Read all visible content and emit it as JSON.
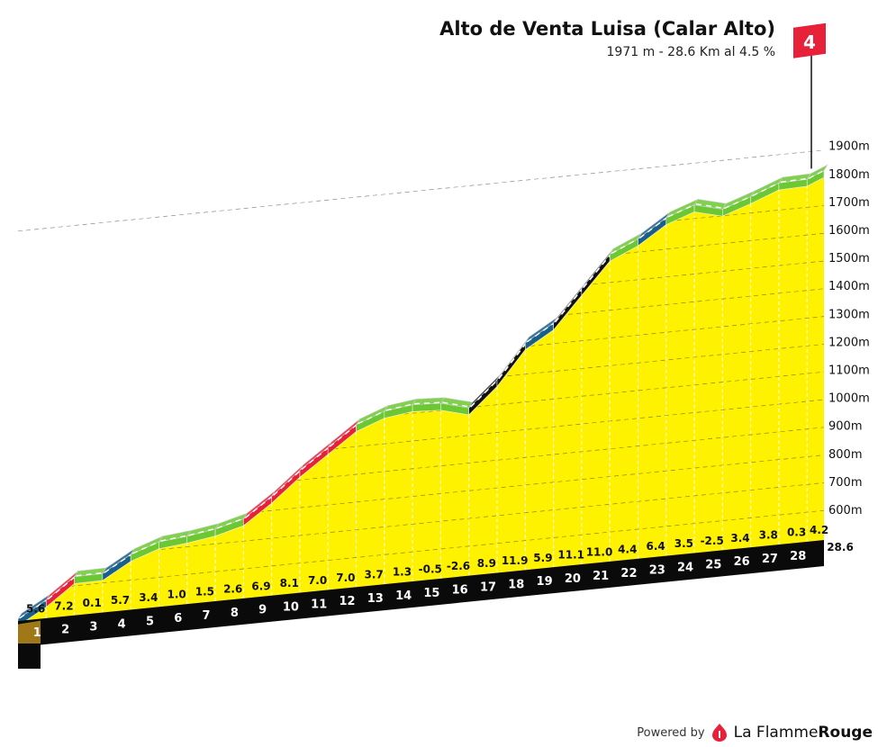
{
  "header": {
    "title": "Alto de Venta Luisa (Calar Alto)",
    "subtitle": "1971 m - 28.6 Km al 4.5 %"
  },
  "footer": {
    "powered_by": "Powered by",
    "brand_light": "La Flamme",
    "brand_bold": "Rouge"
  },
  "category_flag": "4",
  "chart_data": {
    "type": "area",
    "total_distance_label": "28.6",
    "x": [
      0,
      1,
      2,
      3,
      4,
      5,
      6,
      7,
      8,
      9,
      10,
      11,
      12,
      13,
      14,
      15,
      16,
      17,
      18,
      19,
      20,
      21,
      22,
      23,
      24,
      25,
      26,
      27,
      28,
      28.6
    ],
    "elevation": [
      1,
      57,
      129,
      130,
      187,
      221,
      231,
      246,
      272,
      341,
      422,
      492,
      562,
      599,
      612,
      607,
      581,
      670,
      789,
      848,
      959,
      1069,
      1113,
      1177,
      1212,
      1187,
      1221,
      1259,
      1262,
      1287
    ],
    "km_labels": [
      "1",
      "2",
      "3",
      "4",
      "5",
      "6",
      "7",
      "8",
      "9",
      "10",
      "11",
      "12",
      "13",
      "14",
      "15",
      "16",
      "17",
      "18",
      "19",
      "20",
      "21",
      "22",
      "23",
      "24",
      "25",
      "26",
      "27",
      "28"
    ],
    "gradients": [
      5.6,
      7.2,
      0.1,
      5.7,
      3.4,
      1.0,
      1.5,
      2.6,
      6.9,
      8.1,
      7.0,
      7.0,
      3.7,
      1.3,
      -0.5,
      -2.6,
      8.9,
      11.9,
      5.9,
      11.1,
      11.0,
      4.4,
      6.4,
      3.5,
      -2.5,
      3.4,
      3.8,
      0.3,
      4.2
    ],
    "gradient_labels": [
      "5.6",
      "7.2",
      "0.1",
      "5.7",
      "3.4",
      "1.0",
      "1.5",
      "2.6",
      "6.9",
      "8.1",
      "7.0",
      "7.0",
      "3.7",
      "1.3",
      "-0.5",
      "-2.6",
      "8.9",
      "11.9",
      "5.9",
      "11.1",
      "11.0",
      "4.4",
      "6.4",
      "3.5",
      "-2.5",
      "3.4",
      "3.8",
      "0.3",
      "4.2"
    ],
    "y_ticks": [
      600,
      700,
      800,
      900,
      1000,
      1100,
      1200,
      1300,
      1400,
      1500,
      1600,
      1700,
      1800,
      1900
    ],
    "y_tick_labels": [
      "600m",
      "700m",
      "800m",
      "900m",
      "1000m",
      "1100m",
      "1200m",
      "1300m",
      "1400m",
      "1500m",
      "1600m",
      "1700m",
      "1800m",
      "1900m"
    ],
    "colors": {
      "fill": "#fff200",
      "band_dark": "#0a0a0a",
      "side": "#a07818",
      "easy": "#6cc832",
      "moderate": "#1a5f8a",
      "hard": "#e8213a",
      "extreme": "#111111",
      "flag": "#e8213a"
    }
  }
}
